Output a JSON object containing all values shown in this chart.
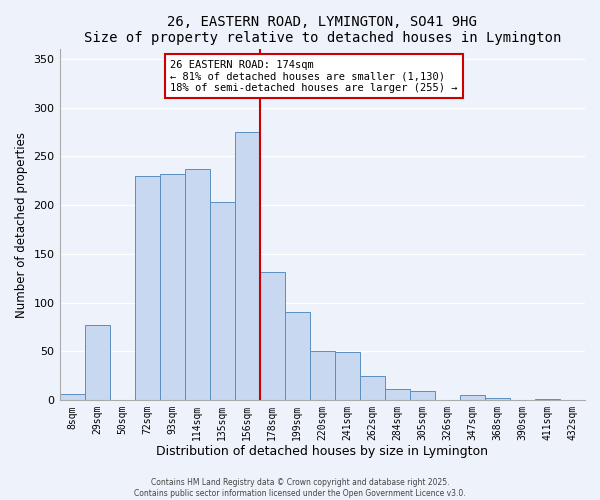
{
  "title": "26, EASTERN ROAD, LYMINGTON, SO41 9HG",
  "subtitle": "Size of property relative to detached houses in Lymington",
  "xlabel": "Distribution of detached houses by size in Lymington",
  "ylabel": "Number of detached properties",
  "bar_labels": [
    "8sqm",
    "29sqm",
    "50sqm",
    "72sqm",
    "93sqm",
    "114sqm",
    "135sqm",
    "156sqm",
    "178sqm",
    "199sqm",
    "220sqm",
    "241sqm",
    "262sqm",
    "284sqm",
    "305sqm",
    "326sqm",
    "347sqm",
    "368sqm",
    "390sqm",
    "411sqm",
    "432sqm"
  ],
  "bar_heights": [
    6,
    77,
    0,
    230,
    232,
    237,
    203,
    275,
    131,
    90,
    50,
    49,
    25,
    12,
    9,
    0,
    5,
    2,
    0,
    1,
    0
  ],
  "bar_color": "#c8d8f0",
  "bar_edge_color": "#5a8fc0",
  "vline_color": "#cc0000",
  "annotation_title": "26 EASTERN ROAD: 174sqm",
  "annotation_line1": "← 81% of detached houses are smaller (1,130)",
  "annotation_line2": "18% of semi-detached houses are larger (255) →",
  "annotation_box_color": "#ffffff",
  "annotation_box_edge": "#cc0000",
  "ylim": [
    0,
    360
  ],
  "yticks": [
    0,
    50,
    100,
    150,
    200,
    250,
    300,
    350
  ],
  "footer1": "Contains HM Land Registry data © Crown copyright and database right 2025.",
  "footer2": "Contains public sector information licensed under the Open Government Licence v3.0.",
  "bg_color": "#eef2fa",
  "grid_color": "#ffffff"
}
